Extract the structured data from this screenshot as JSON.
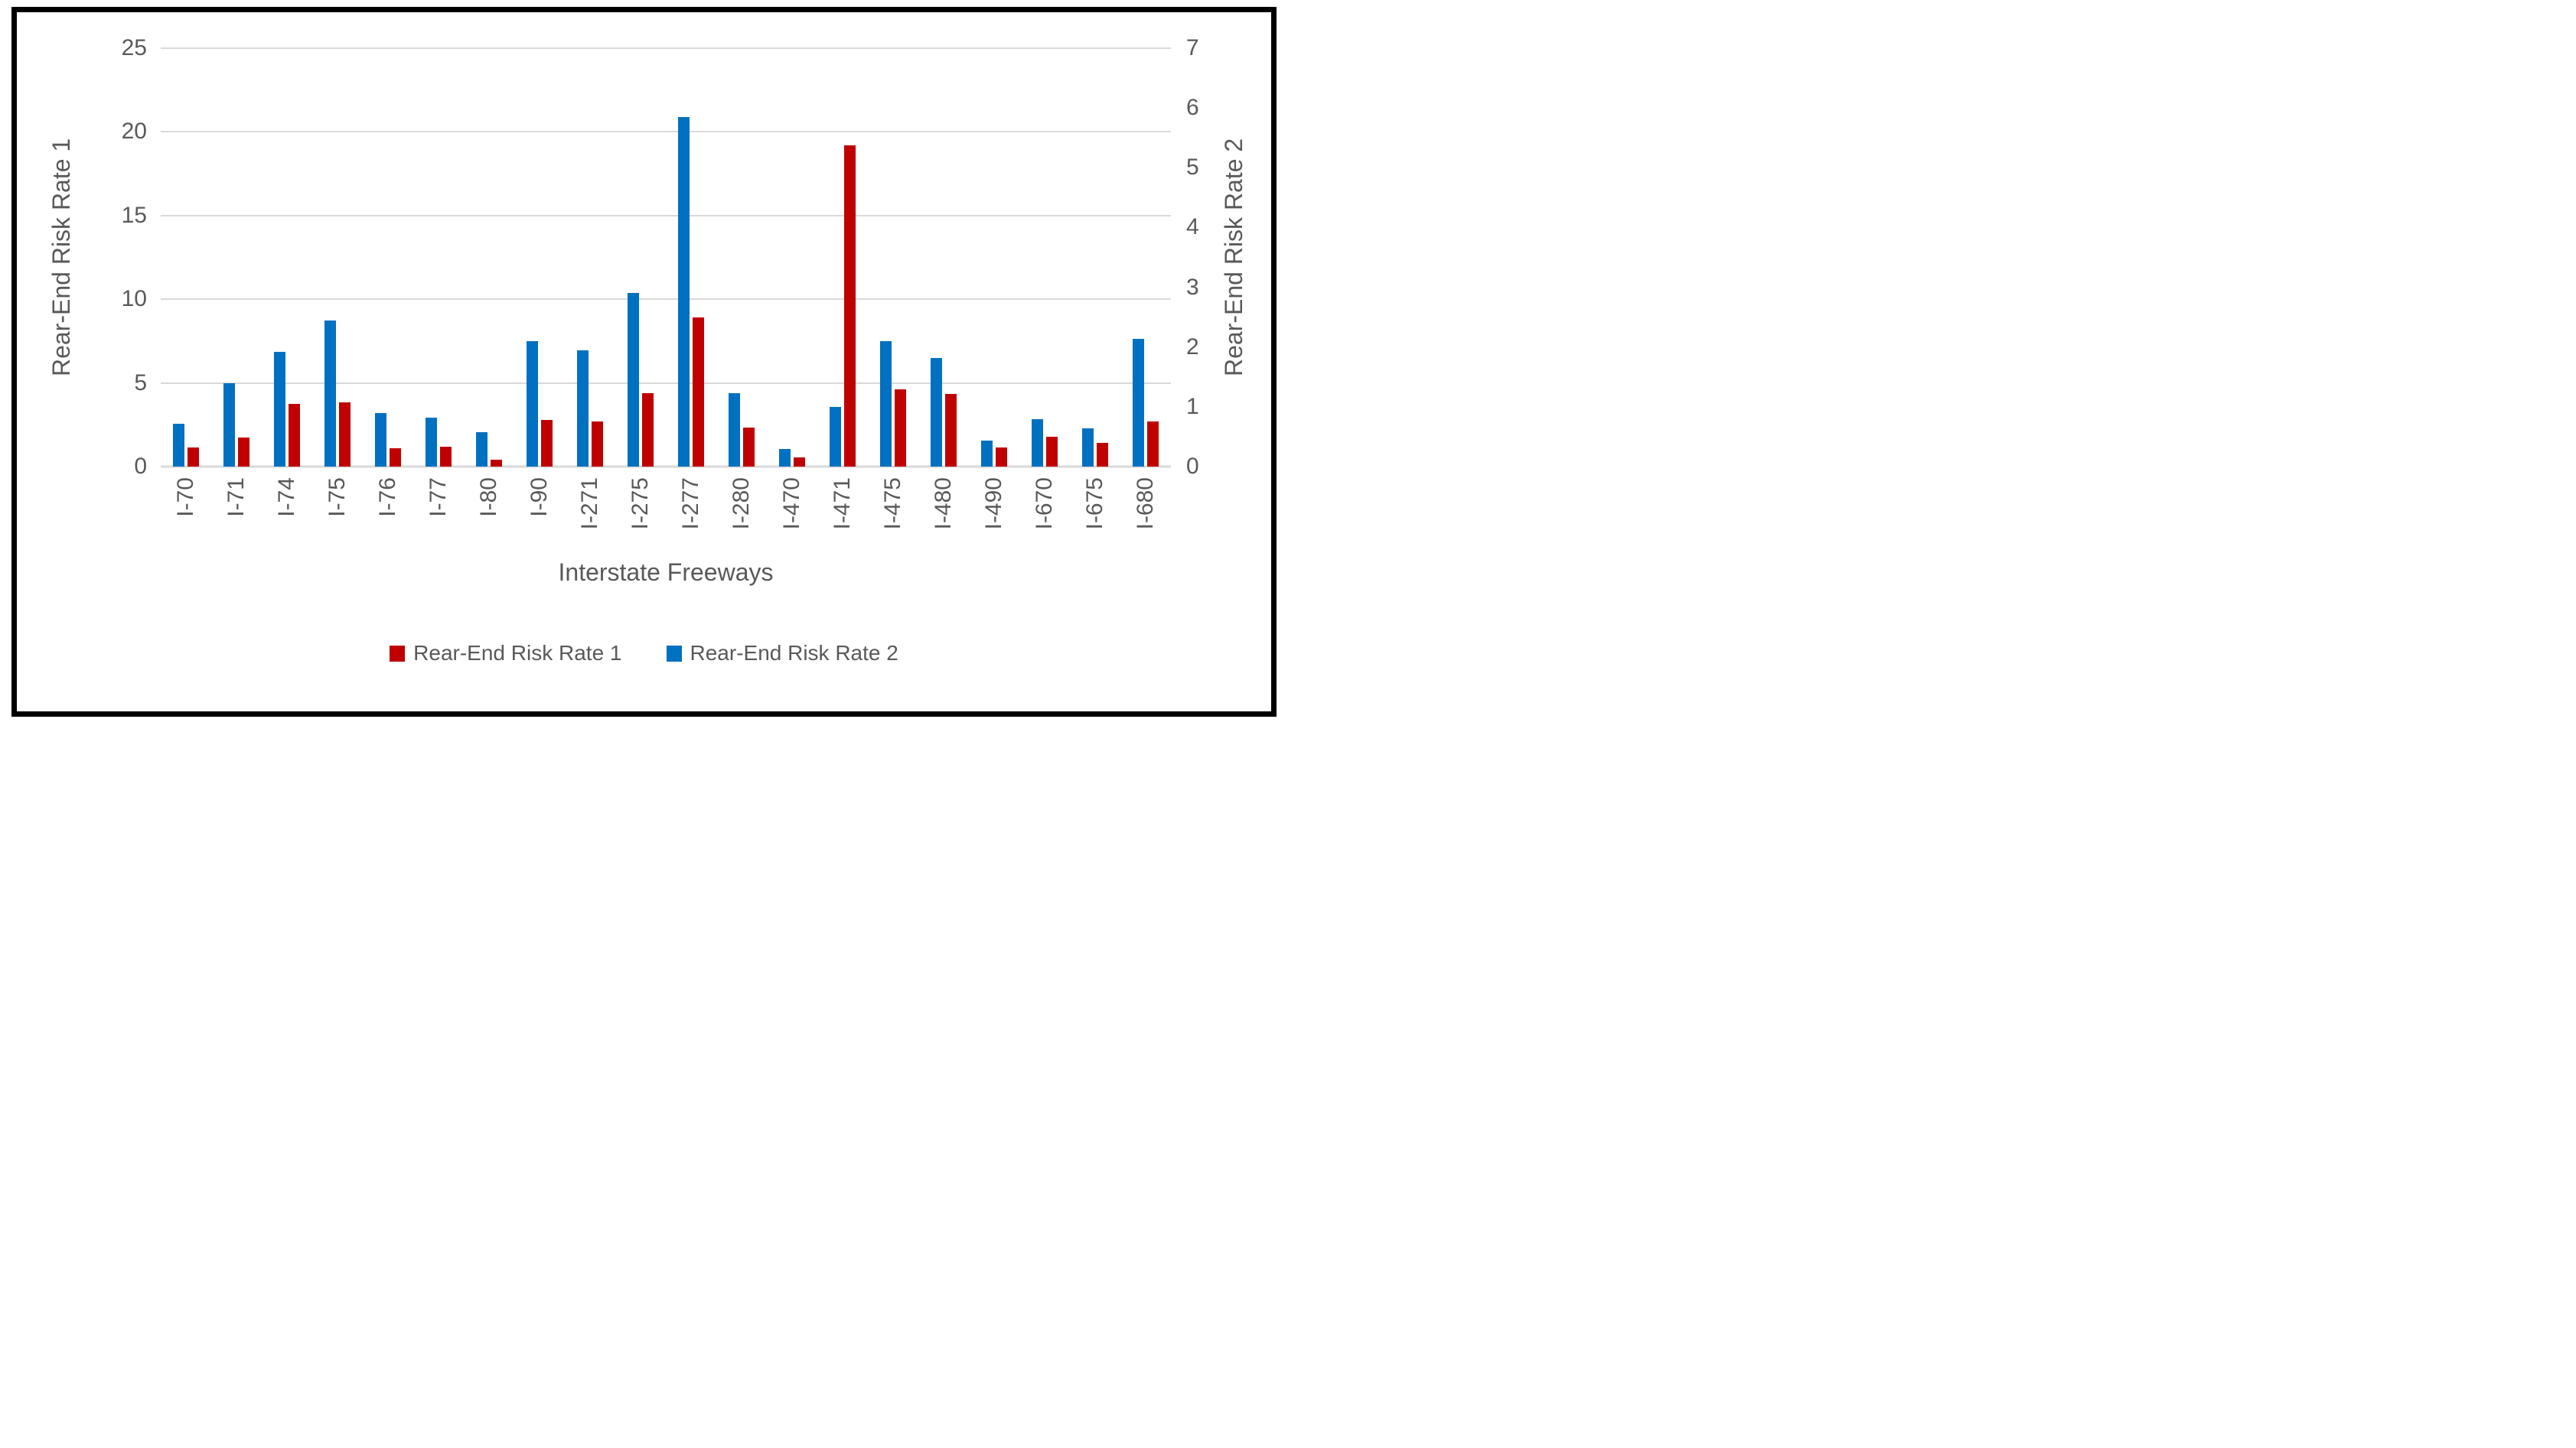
{
  "styles": {
    "text_color": "#595959",
    "gridline_color": "#D9D9D9",
    "background": "#FFFFFF",
    "frame_color": "#000000",
    "rate1_red": "#C00000",
    "rate2_blue": "#0070C0"
  },
  "chart_data": {
    "type": "bar",
    "title": "",
    "xlabel": "Interstate Freeways",
    "grid": true,
    "legend_position": "bottom",
    "categories": [
      "I-70",
      "I-71",
      "I-74",
      "I-75",
      "I-76",
      "I-77",
      "I-80",
      "I-90",
      "I-271",
      "I-275",
      "I-277",
      "I-280",
      "I-470",
      "I-471",
      "I-475",
      "I-480",
      "I-490",
      "I-670",
      "I-675",
      "I-680"
    ],
    "series": [
      {
        "name": "Rear-End Risk Rate 1",
        "color": "#C00000",
        "axis": "left",
        "values": [
          1.15,
          1.75,
          3.75,
          3.85,
          1.1,
          1.2,
          0.4,
          2.8,
          2.7,
          4.4,
          8.9,
          2.35,
          0.55,
          19.2,
          4.6,
          4.35,
          1.15,
          1.8,
          1.4,
          2.7
        ]
      },
      {
        "name": "Rear-End Risk Rate 2",
        "color": "#0070C0",
        "axis": "right",
        "values": [
          0.72,
          1.4,
          1.92,
          2.45,
          0.89,
          0.82,
          0.58,
          2.1,
          1.95,
          2.9,
          5.85,
          1.23,
          0.3,
          1.0,
          2.1,
          1.82,
          0.43,
          0.79,
          0.64,
          2.14
        ]
      }
    ],
    "bar_draw_order_in_group": [
      "Rear-End Risk Rate 2",
      "Rear-End Risk Rate 1"
    ],
    "left_axis": {
      "label": "Rear-End Risk Rate 1",
      "min": 0,
      "max": 25,
      "ticks": [
        0,
        5,
        10,
        15,
        20,
        25
      ]
    },
    "right_axis": {
      "label": "Rear-End Risk Rate 2",
      "min": 0,
      "max": 7,
      "ticks": [
        0,
        1,
        2,
        3,
        4,
        5,
        6,
        7
      ]
    },
    "legend": [
      {
        "label": "Rear-End Risk Rate 1",
        "color": "#C00000"
      },
      {
        "label": "Rear-End Risk Rate 2",
        "color": "#0070C0"
      }
    ]
  }
}
